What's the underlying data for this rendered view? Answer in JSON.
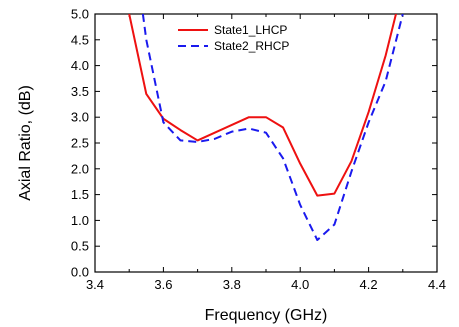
{
  "chart_data": {
    "type": "line",
    "title": "",
    "xlabel": "Frequency (GHz)",
    "ylabel": "Axial Ratio, (dB)",
    "xlim": [
      3.4,
      4.4
    ],
    "ylim": [
      0.0,
      5.0
    ],
    "xticks": [
      "3.4",
      "3.6",
      "3.8",
      "4.0",
      "4.2",
      "4.4"
    ],
    "yticks": [
      "0.0",
      "0.5",
      "1.0",
      "1.5",
      "2.0",
      "2.5",
      "3.0",
      "3.5",
      "4.0",
      "4.5",
      "5.0"
    ],
    "grid": false,
    "legend_position": "top-center",
    "series": [
      {
        "name": "State1_LHCP",
        "color": "#ee1111",
        "style": "solid",
        "x": [
          3.5,
          3.55,
          3.6,
          3.65,
          3.7,
          3.75,
          3.8,
          3.85,
          3.9,
          3.95,
          4.0,
          4.05,
          4.1,
          4.15,
          4.2,
          4.25,
          4.28
        ],
        "y": [
          5.0,
          3.45,
          2.97,
          2.75,
          2.55,
          2.7,
          2.85,
          3.0,
          3.0,
          2.8,
          2.1,
          1.48,
          1.52,
          2.15,
          3.1,
          4.2,
          5.0
        ]
      },
      {
        "name": "State2_RHCP",
        "color": "#1a1aee",
        "style": "dashed",
        "x": [
          3.54,
          3.55,
          3.6,
          3.65,
          3.7,
          3.75,
          3.8,
          3.85,
          3.9,
          3.95,
          4.0,
          4.05,
          4.1,
          4.15,
          4.2,
          4.25,
          4.3
        ],
        "y": [
          5.0,
          4.5,
          2.9,
          2.55,
          2.52,
          2.58,
          2.72,
          2.78,
          2.7,
          2.2,
          1.3,
          0.62,
          0.92,
          1.95,
          2.9,
          3.7,
          5.0
        ]
      }
    ]
  }
}
